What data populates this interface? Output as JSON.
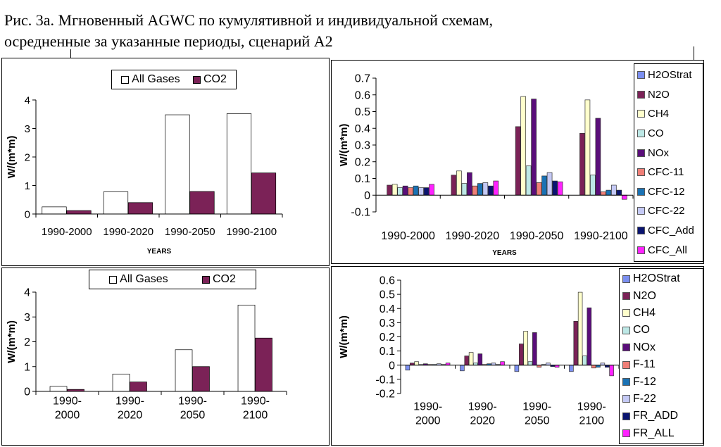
{
  "title": {
    "line1": "Рис. 3а. Мгновенный AGWC по кумулятивной и индивидуальной схемам,",
    "line2": "осредненные за указанные периоды, сценарий А2"
  },
  "chart_data": [
    {
      "id": "top-left",
      "type": "bar",
      "ylabel": "W/(m*m)",
      "xlabel": "YEARS",
      "categories": [
        "1990-2000",
        "1990-2020",
        "1990-2050",
        "1990-2100"
      ],
      "ylim": [
        0,
        4
      ],
      "yticks": [
        0,
        1,
        2,
        3,
        4
      ],
      "grid": false,
      "legend_position": "top-center",
      "series": [
        {
          "name": "All Gases",
          "color": "#ffffff",
          "values": [
            0.25,
            0.78,
            3.48,
            3.52
          ]
        },
        {
          "name": "CO2",
          "color": "#7b2257",
          "values": [
            0.12,
            0.4,
            0.79,
            1.44
          ]
        }
      ]
    },
    {
      "id": "top-right",
      "type": "bar",
      "ylabel": "W/(m*m)",
      "xlabel": "YEARS",
      "categories": [
        "1990-2000",
        "1990-2020",
        "1990-2050",
        "1990-2100"
      ],
      "ylim": [
        -0.1,
        0.7
      ],
      "yticks": [
        -0.1,
        0,
        0.1,
        0.2,
        0.3,
        0.4,
        0.5,
        0.6,
        0.7
      ],
      "grid": false,
      "legend_position": "right",
      "series": [
        {
          "name": "H2OStrat",
          "color": "#7b8ff0",
          "values": [
            0.0,
            0.0,
            0.0,
            0.0
          ]
        },
        {
          "name": "N2O",
          "color": "#7b2257",
          "values": [
            0.06,
            0.12,
            0.41,
            0.37
          ]
        },
        {
          "name": "CH4",
          "color": "#ffffcc",
          "values": [
            0.065,
            0.145,
            0.59,
            0.57
          ]
        },
        {
          "name": "CO",
          "color": "#bde8e6",
          "values": [
            0.045,
            0.07,
            0.175,
            0.12
          ]
        },
        {
          "name": "NOx",
          "color": "#5a0e7a",
          "values": [
            0.055,
            0.135,
            0.575,
            0.46
          ]
        },
        {
          "name": "CFC-11",
          "color": "#f07f77",
          "values": [
            0.045,
            0.055,
            0.075,
            0.02
          ]
        },
        {
          "name": "CFC-12",
          "color": "#1a72b4",
          "values": [
            0.055,
            0.07,
            0.115,
            0.03
          ]
        },
        {
          "name": "CFC-22",
          "color": "#c4c9f5",
          "values": [
            0.045,
            0.075,
            0.135,
            0.06
          ]
        },
        {
          "name": "CFC_Add",
          "color": "#0a1470",
          "values": [
            0.045,
            0.055,
            0.085,
            0.03
          ]
        },
        {
          "name": "CFC_All",
          "color": "#ff22ff",
          "values": [
            0.065,
            0.085,
            0.08,
            -0.025
          ]
        }
      ]
    },
    {
      "id": "bottom-left",
      "type": "bar",
      "ylabel": "W/(m*m)",
      "categories": [
        "1990-\n2000",
        "1990-\n2020",
        "1990-\n2050",
        "1990-\n2100"
      ],
      "ylim": [
        0,
        4
      ],
      "yticks": [
        0,
        1,
        2,
        3,
        4
      ],
      "grid": false,
      "legend_position": "top-center",
      "series": [
        {
          "name": "All Gases",
          "color": "#ffffff",
          "values": [
            0.2,
            0.7,
            1.68,
            3.48
          ]
        },
        {
          "name": "CO2",
          "color": "#7b2257",
          "values": [
            0.08,
            0.38,
            1.0,
            2.15
          ]
        }
      ]
    },
    {
      "id": "bottom-right",
      "type": "bar",
      "ylabel": "W/(m*m)",
      "categories": [
        "1990-\n2000",
        "1990-\n2020",
        "1990-\n2050",
        "1990-\n2100"
      ],
      "ylim": [
        -0.2,
        0.6
      ],
      "yticks": [
        -0.2,
        -0.1,
        0,
        0.1,
        0.2,
        0.3,
        0.4,
        0.5,
        0.6
      ],
      "grid": false,
      "legend_position": "right",
      "series": [
        {
          "name": "H2OStrat",
          "color": "#7b8ff0",
          "values": [
            -0.035,
            -0.04,
            -0.045,
            -0.045
          ]
        },
        {
          "name": "N2O",
          "color": "#7b2257",
          "values": [
            0.015,
            0.065,
            0.15,
            0.31
          ]
        },
        {
          "name": "CH4",
          "color": "#ffffcc",
          "values": [
            0.025,
            0.09,
            0.24,
            0.515
          ]
        },
        {
          "name": "CO",
          "color": "#bde8e6",
          "values": [
            0.005,
            0.015,
            0.025,
            0.065
          ]
        },
        {
          "name": "NOx",
          "color": "#5a0e7a",
          "values": [
            0.01,
            0.08,
            0.23,
            0.405
          ]
        },
        {
          "name": "F-11",
          "color": "#f07f77",
          "values": [
            0.005,
            0.005,
            -0.015,
            -0.02
          ]
        },
        {
          "name": "F-12",
          "color": "#1a72b4",
          "values": [
            0.005,
            0.01,
            0.005,
            -0.015
          ]
        },
        {
          "name": "F-22",
          "color": "#c4c9f5",
          "values": [
            0.01,
            0.015,
            0.015,
            0.015
          ]
        },
        {
          "name": "FR_ADD",
          "color": "#0a1470",
          "values": [
            0.005,
            0.005,
            -0.01,
            -0.015
          ]
        },
        {
          "name": "FR_ALL",
          "color": "#ff22ff",
          "values": [
            0.015,
            0.025,
            -0.015,
            -0.075
          ]
        }
      ]
    }
  ]
}
